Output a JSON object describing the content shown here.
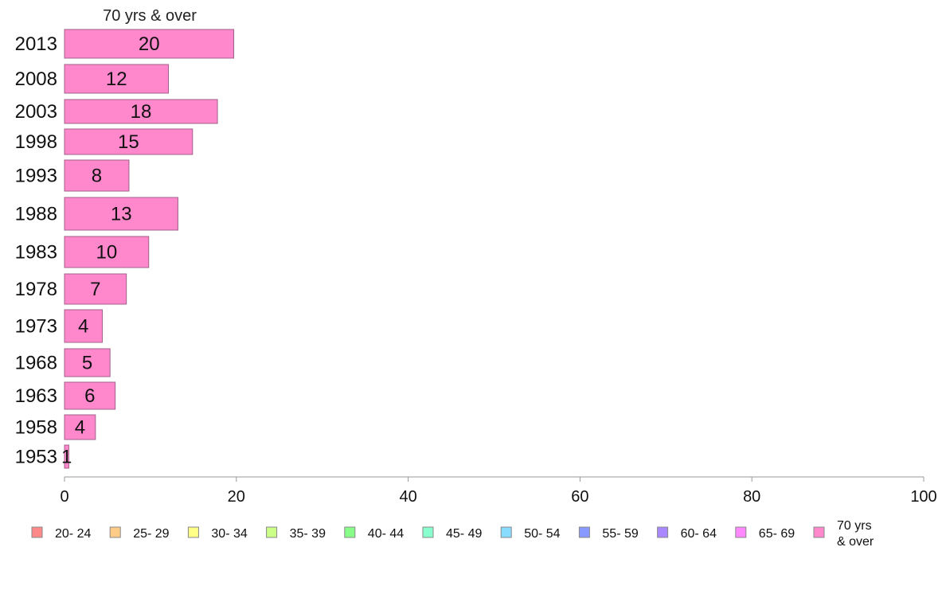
{
  "chart_data": {
    "type": "bar",
    "orientation": "horizontal",
    "title": "70 yrs & over",
    "categories": [
      "2013",
      "2008",
      "2003",
      "1998",
      "1993",
      "1988",
      "1983",
      "1978",
      "1973",
      "1968",
      "1963",
      "1958",
      "1953"
    ],
    "series": [
      {
        "name": "70 yrs & over",
        "color": "#ff88cc",
        "values": [
          19.7,
          12.1,
          17.8,
          14.9,
          7.5,
          13.2,
          9.8,
          7.2,
          4.4,
          5.3,
          5.9,
          3.6,
          0.5
        ],
        "labels": [
          "20",
          "12",
          "18",
          "15",
          "8",
          "13",
          "10",
          "7",
          "4",
          "5",
          "6",
          "4",
          "1"
        ]
      }
    ],
    "xlim": [
      0,
      100
    ],
    "xticks": [
      "0",
      "20",
      "40",
      "60",
      "80",
      "100"
    ],
    "grid": false,
    "legend": {
      "placement": "bottom",
      "items": [
        {
          "label": "20- 24",
          "color": "#ff8888"
        },
        {
          "label": "25- 29",
          "color": "#ffcc88"
        },
        {
          "label": "30- 34",
          "color": "#ffff88"
        },
        {
          "label": "35- 39",
          "color": "#ccff88"
        },
        {
          "label": "40- 44",
          "color": "#88ff88"
        },
        {
          "label": "45- 49",
          "color": "#88ffcc"
        },
        {
          "label": "50- 54",
          "color": "#88ddff"
        },
        {
          "label": "55- 59",
          "color": "#8899ff"
        },
        {
          "label": "60- 64",
          "color": "#aa88ff"
        },
        {
          "label": "65- 69",
          "color": "#ff88ff"
        },
        {
          "label": "70 yrs\n& over",
          "color": "#ff88cc"
        }
      ]
    }
  }
}
